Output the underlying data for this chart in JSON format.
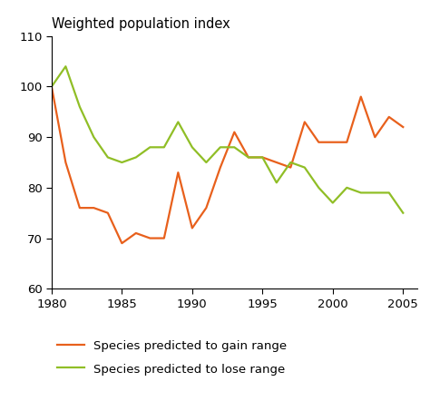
{
  "title": "Weighted population index",
  "xlim": [
    1980,
    2006
  ],
  "ylim": [
    60,
    110
  ],
  "xticks": [
    1980,
    1985,
    1990,
    1995,
    2000,
    2005
  ],
  "yticks": [
    60,
    70,
    80,
    90,
    100,
    110
  ],
  "gain_x": [
    1980,
    1981,
    1982,
    1983,
    1984,
    1985,
    1986,
    1987,
    1988,
    1989,
    1990,
    1991,
    1992,
    1993,
    1994,
    1995,
    1996,
    1997,
    1998,
    1999,
    2000,
    2001,
    2002,
    2003,
    2004,
    2005
  ],
  "gain_y": [
    100,
    85,
    76,
    76,
    75,
    69,
    71,
    70,
    70,
    83,
    72,
    76,
    84,
    91,
    86,
    86,
    85,
    84,
    93,
    89,
    89,
    89,
    98,
    90,
    94,
    92
  ],
  "lose_x": [
    1980,
    1981,
    1982,
    1983,
    1984,
    1985,
    1986,
    1987,
    1988,
    1989,
    1990,
    1991,
    1992,
    1993,
    1994,
    1995,
    1996,
    1997,
    1998,
    1999,
    2000,
    2001,
    2002,
    2003,
    2004,
    2005
  ],
  "lose_y": [
    100,
    104,
    96,
    90,
    86,
    85,
    86,
    88,
    88,
    93,
    88,
    85,
    88,
    88,
    86,
    86,
    81,
    85,
    84,
    80,
    77,
    80,
    79,
    79,
    79,
    75
  ],
  "gain_color": "#e8601c",
  "lose_color": "#90be26",
  "gain_label": "Species predicted to gain range",
  "lose_label": "Species predicted to lose range",
  "line_width": 1.6,
  "title_fontsize": 10.5,
  "tick_fontsize": 9.5,
  "legend_fontsize": 9.5,
  "bg_color": "#ffffff"
}
